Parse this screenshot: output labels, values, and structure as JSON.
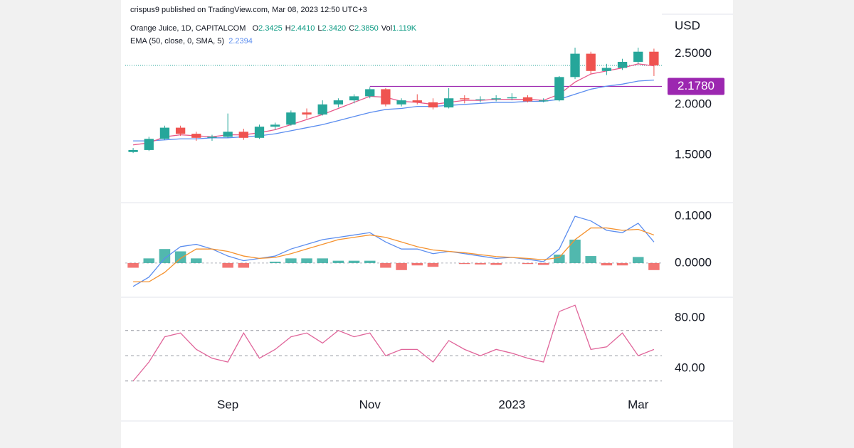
{
  "header": {
    "published": "crispus9 published on TradingView.com, Mar 08, 2023 12:50 UTC+3",
    "symbol": "Orange Juice, 1D, CAPITALCOM",
    "ohlc": [
      {
        "label": "O",
        "value": "2.3425"
      },
      {
        "label": "H",
        "value": "2.4410"
      },
      {
        "label": "L",
        "value": "2.3420"
      },
      {
        "label": "C",
        "value": "2.3850"
      },
      {
        "label": "Vol",
        "value": "1.119K"
      }
    ],
    "indicator": "EMA (50, close, 0, SMA, 5)",
    "indicator_value": "2.2394"
  },
  "chart_data": [
    {
      "type": "candlestick",
      "unit": "USD",
      "ylim": [
        1.03,
        2.89
      ],
      "yticks": [
        {
          "value": 1.5,
          "label": "1.5000"
        },
        {
          "value": 2.0,
          "label": "2.0000"
        },
        {
          "value": 2.5,
          "label": "2.5000"
        }
      ],
      "up_color": "#26a69a",
      "down_color": "#ef5350",
      "open": [
        1.53,
        1.55,
        1.66,
        1.77,
        1.71,
        1.67,
        1.68,
        1.73,
        1.67,
        1.78,
        1.8,
        1.92,
        1.9,
        2.0,
        2.04,
        2.08,
        2.15,
        2.0,
        2.04,
        2.02,
        1.97,
        2.06,
        2.05,
        2.05,
        2.06,
        2.07,
        2.03,
        2.04,
        2.27,
        2.5,
        2.33,
        2.36,
        2.42,
        2.52
      ],
      "high": [
        1.57,
        1.68,
        1.79,
        1.79,
        1.73,
        1.7,
        1.91,
        1.76,
        1.8,
        1.82,
        1.94,
        1.96,
        2.04,
        2.06,
        2.1,
        2.17,
        2.16,
        2.06,
        2.1,
        2.06,
        2.16,
        2.09,
        2.08,
        2.09,
        2.11,
        2.09,
        2.06,
        2.28,
        2.56,
        2.52,
        2.4,
        2.45,
        2.56,
        2.55
      ],
      "low": [
        1.52,
        1.54,
        1.65,
        1.69,
        1.64,
        1.64,
        1.67,
        1.65,
        1.66,
        1.75,
        1.79,
        1.86,
        1.89,
        1.97,
        2.01,
        2.06,
        1.98,
        1.98,
        2.0,
        1.95,
        1.96,
        2.01,
        2.02,
        2.03,
        2.04,
        2.02,
        2.02,
        2.03,
        2.25,
        2.3,
        2.29,
        2.34,
        2.4,
        2.28
      ],
      "close": [
        1.55,
        1.66,
        1.77,
        1.71,
        1.67,
        1.68,
        1.73,
        1.67,
        1.78,
        1.8,
        1.92,
        1.9,
        2.0,
        2.04,
        2.08,
        2.15,
        2.0,
        2.04,
        2.02,
        1.97,
        2.06,
        2.05,
        2.05,
        2.06,
        2.07,
        2.03,
        2.04,
        2.27,
        2.5,
        2.33,
        2.36,
        2.42,
        2.52,
        2.385
      ],
      "series": [
        {
          "color": "#5b8def",
          "values": [
            1.64,
            1.64,
            1.65,
            1.66,
            1.66,
            1.67,
            1.67,
            1.68,
            1.69,
            1.71,
            1.74,
            1.77,
            1.8,
            1.84,
            1.88,
            1.92,
            1.95,
            1.96,
            1.98,
            1.98,
            1.99,
            2.0,
            2.01,
            2.02,
            2.02,
            2.03,
            2.03,
            2.05,
            2.1,
            2.15,
            2.18,
            2.2,
            2.23,
            2.24
          ]
        },
        {
          "color": "#e8588a",
          "values": [
            1.6,
            1.62,
            1.68,
            1.7,
            1.69,
            1.68,
            1.7,
            1.7,
            1.72,
            1.75,
            1.8,
            1.85,
            1.9,
            1.96,
            2.02,
            2.08,
            2.07,
            2.03,
            2.02,
            2.0,
            2.02,
            2.04,
            2.04,
            2.05,
            2.05,
            2.05,
            2.04,
            2.1,
            2.22,
            2.3,
            2.33,
            2.36,
            2.4,
            2.38
          ]
        }
      ],
      "level": {
        "value": 2.178,
        "label": "2.1780",
        "color": "#9c27b0"
      }
    },
    {
      "type": "macd",
      "ylim": [
        -0.073,
        0.129
      ],
      "yticks": [
        {
          "value": 0,
          "label": "0.0000"
        },
        {
          "value": 0.1,
          "label": "0.1000"
        }
      ],
      "up_color": "#26a69a",
      "down_color": "#ef5350",
      "histogram": [
        -0.01,
        0.01,
        0.03,
        0.025,
        0.01,
        0,
        -0.01,
        -0.01,
        0,
        0.003,
        0.01,
        0.01,
        0.01,
        0.005,
        0.005,
        0.005,
        -0.01,
        -0.015,
        -0.005,
        -0.008,
        0,
        -0.002,
        -0.003,
        -0.004,
        0,
        -0.002,
        -0.004,
        0.018,
        0.05,
        0.015,
        -0.005,
        -0.005,
        0.013,
        -0.015
      ],
      "series": [
        {
          "color": "#5b8def",
          "values": [
            -0.05,
            -0.03,
            0.01,
            0.035,
            0.04,
            0.03,
            0.015,
            0.005,
            0.01,
            0.015,
            0.03,
            0.04,
            0.05,
            0.055,
            0.06,
            0.065,
            0.045,
            0.03,
            0.03,
            0.02,
            0.025,
            0.02,
            0.015,
            0.01,
            0.012,
            0.008,
            0.003,
            0.03,
            0.1,
            0.09,
            0.07,
            0.065,
            0.085,
            0.045
          ]
        },
        {
          "color": "#f5922f",
          "values": [
            -0.04,
            -0.04,
            -0.02,
            0.01,
            0.03,
            0.03,
            0.025,
            0.015,
            0.01,
            0.012,
            0.02,
            0.03,
            0.04,
            0.05,
            0.055,
            0.06,
            0.055,
            0.045,
            0.035,
            0.028,
            0.025,
            0.022,
            0.018,
            0.014,
            0.012,
            0.01,
            0.007,
            0.012,
            0.05,
            0.075,
            0.075,
            0.07,
            0.072,
            0.06
          ]
        }
      ]
    },
    {
      "type": "line",
      "ylim": [
        24.8,
        96.3
      ],
      "yticks": [
        {
          "value": 40,
          "label": "40.00"
        },
        {
          "value": 80,
          "label": "80.00"
        }
      ],
      "bands": [
        30,
        50,
        70
      ],
      "categories": [
        null,
        null,
        null,
        null,
        null,
        null,
        "Sep",
        null,
        null,
        null,
        null,
        null,
        null,
        null,
        null,
        "Nov",
        null,
        null,
        null,
        null,
        null,
        null,
        null,
        null,
        "2023",
        null,
        null,
        null,
        null,
        null,
        null,
        null,
        "Mar",
        null
      ],
      "series": [
        {
          "color": "#e0659a",
          "values": [
            30,
            45,
            65,
            68,
            55,
            48,
            45,
            68,
            48,
            55,
            65,
            68,
            60,
            70,
            65,
            68,
            50,
            55,
            55,
            45,
            62,
            55,
            50,
            55,
            52,
            48,
            45,
            85,
            90,
            55,
            57,
            68,
            50,
            55
          ]
        }
      ]
    }
  ]
}
